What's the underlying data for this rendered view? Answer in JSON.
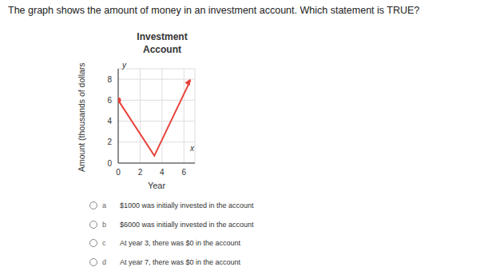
{
  "question": "The graph shows the amount of money in an investment account. Which statement is TRUE?",
  "chart_data": {
    "type": "line",
    "title": "Investment Account",
    "x_label": "Year",
    "y_label": "Amount (thousands of dollars)",
    "annotations": [
      "y",
      "x"
    ],
    "series": [
      {
        "name": null,
        "color": "#e8413a",
        "marker": "circle",
        "x": [
          0,
          3.3,
          6.6
        ],
        "values": [
          6,
          0.7,
          7.9
        ]
      }
    ],
    "xlim": [
      0,
      7
    ],
    "xticks": [
      0,
      2,
      4,
      6
    ],
    "ylim": [
      0,
      9
    ],
    "yticks": [
      0,
      2,
      4,
      6,
      8
    ],
    "grid": true
  },
  "options": [
    {
      "letter": "a",
      "text": "$1000 was initially invested in the account"
    },
    {
      "letter": "b",
      "text": "$6000 was initially invested in the account"
    },
    {
      "letter": "c",
      "text": "At year 3, there was $0 in the account"
    },
    {
      "letter": "d",
      "text": "At year 7, there was $0 in the account"
    }
  ]
}
